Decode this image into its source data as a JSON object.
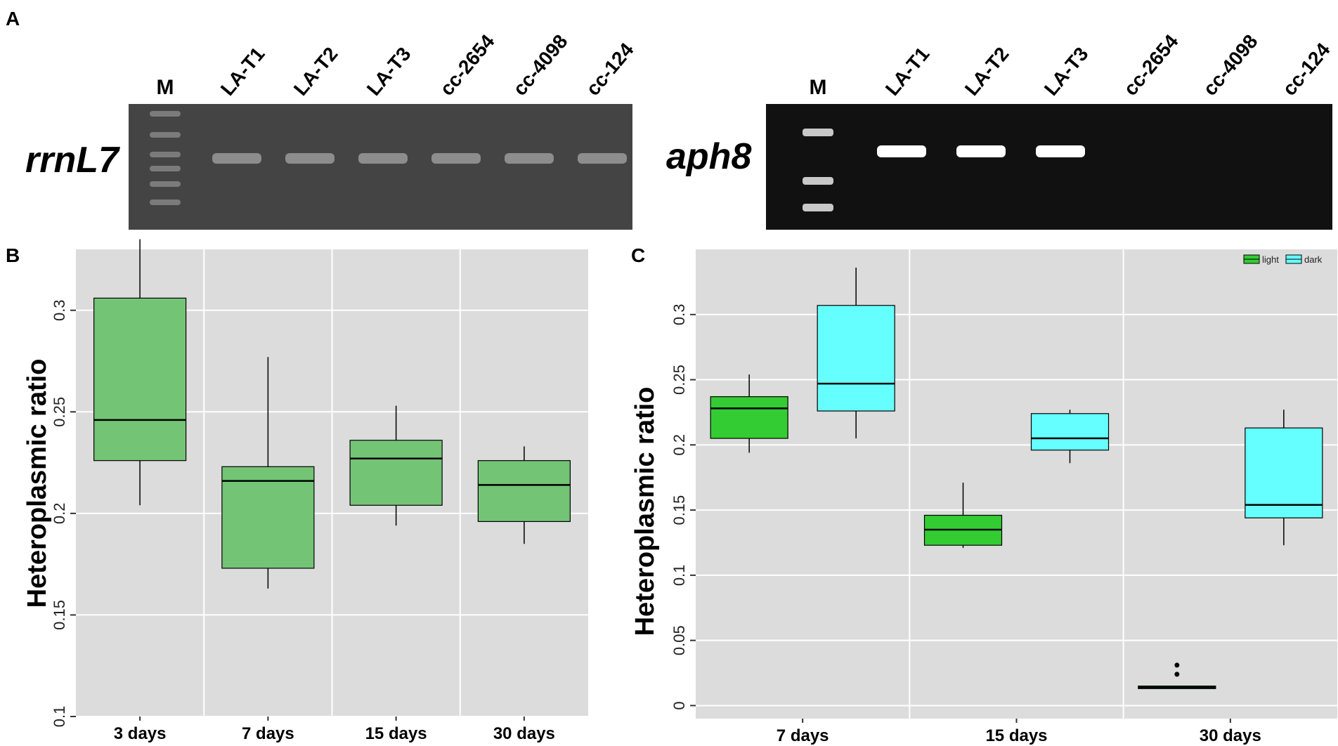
{
  "panels": {
    "a": {
      "letter": "A"
    },
    "b": {
      "letter": "B"
    },
    "c": {
      "letter": "C"
    }
  },
  "gels": [
    {
      "gene_label": "rrnL7",
      "ladder_label": "M",
      "lane_labels": [
        "LA-T1",
        "LA-T2",
        "LA-T3",
        "cc-2654",
        "cc-4098",
        "cc-124"
      ],
      "background": "#444444",
      "band_color": "#9a9a9a",
      "bands_present": [
        true,
        true,
        true,
        true,
        true,
        true
      ]
    },
    {
      "gene_label": "aph8",
      "ladder_label": "M",
      "lane_labels": [
        "LA-T1",
        "LA-T2",
        "LA-T3",
        "cc-2654",
        "cc-4098",
        "cc-124"
      ],
      "background": "#111111",
      "band_color": "#ffffff",
      "bands_present": [
        true,
        true,
        true,
        false,
        false,
        false
      ]
    }
  ],
  "chart_data": [
    {
      "type": "box",
      "panel": "B",
      "ylabel": "Heteroplasmic ratio",
      "xlabel": "",
      "categories": [
        "3 days",
        "7 days",
        "15 days",
        "30 days"
      ],
      "ylim": [
        0.1,
        0.33
      ],
      "yticks": [
        "0.1",
        "0.15",
        "0.2",
        "0.25",
        "0.3"
      ],
      "grid": true,
      "background": "#dcdcdc",
      "fill": "#74c476",
      "boxes": [
        {
          "category": "3 days",
          "low": 0.204,
          "q1": 0.226,
          "median": 0.246,
          "q3": 0.306,
          "high": 0.335
        },
        {
          "category": "7 days",
          "low": 0.163,
          "q1": 0.173,
          "median": 0.216,
          "q3": 0.223,
          "high": 0.277
        },
        {
          "category": "15 days",
          "low": 0.194,
          "q1": 0.204,
          "median": 0.227,
          "q3": 0.236,
          "high": 0.253
        },
        {
          "category": "30 days",
          "low": 0.185,
          "q1": 0.196,
          "median": 0.214,
          "q3": 0.226,
          "high": 0.233
        }
      ]
    },
    {
      "type": "box",
      "panel": "C",
      "ylabel": "Heteroplasmic ratio",
      "xlabel": "",
      "categories": [
        "7 days",
        "15 days",
        "30 days"
      ],
      "ylim": [
        -0.01,
        0.35
      ],
      "yticks": [
        "0",
        "0.05",
        "0.1",
        "0.15",
        "0.2",
        "0.25",
        "0.3"
      ],
      "grid": true,
      "background": "#dcdcdc",
      "legend": {
        "position": "top-right",
        "entries": [
          "light",
          "dark"
        ]
      },
      "series": [
        {
          "name": "light",
          "color": "#33cc33",
          "boxes": [
            {
              "category": "7 days",
              "low": 0.194,
              "q1": 0.205,
              "median": 0.228,
              "q3": 0.237,
              "high": 0.254,
              "outliers": []
            },
            {
              "category": "15 days",
              "low": 0.121,
              "q1": 0.123,
              "median": 0.135,
              "q3": 0.146,
              "high": 0.171,
              "outliers": []
            },
            {
              "category": "30 days",
              "low": 0.013,
              "q1": 0.013,
              "median": 0.014,
              "q3": 0.015,
              "high": 0.015,
              "outliers": [
                0.024,
                0.031
              ]
            }
          ]
        },
        {
          "name": "dark",
          "color": "#66ffff",
          "boxes": [
            {
              "category": "7 days",
              "low": 0.205,
              "q1": 0.226,
              "median": 0.247,
              "q3": 0.307,
              "high": 0.336,
              "outliers": []
            },
            {
              "category": "15 days",
              "low": 0.186,
              "q1": 0.196,
              "median": 0.205,
              "q3": 0.224,
              "high": 0.227,
              "outliers": []
            },
            {
              "category": "30 days",
              "low": 0.123,
              "q1": 0.144,
              "median": 0.154,
              "q3": 0.213,
              "high": 0.227,
              "outliers": []
            }
          ]
        }
      ]
    }
  ]
}
